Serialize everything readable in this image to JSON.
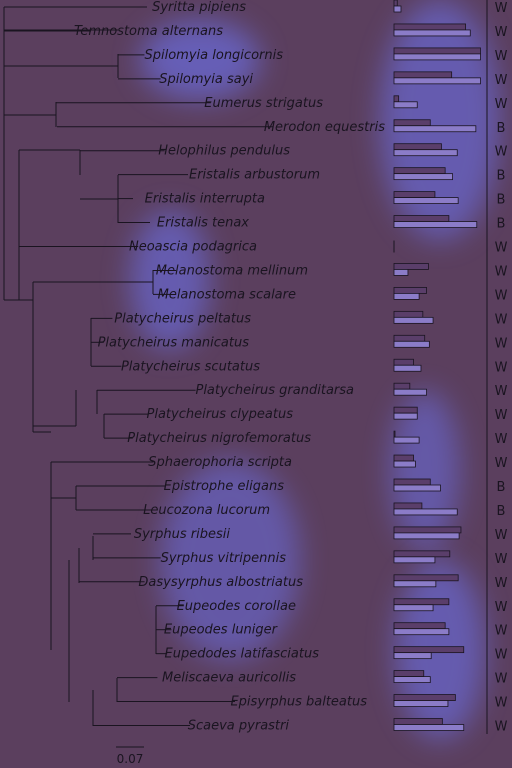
{
  "tree": {
    "taxa": [
      {
        "name": "Syritta pipiens",
        "code": "W",
        "bar1": 0.035,
        "bar2": 0.075
      },
      {
        "name": "Temnostoma alternans",
        "code": "W",
        "bar1": 0.77,
        "bar2": 0.82
      },
      {
        "name": "Spilomyia longicornis",
        "code": "W",
        "bar1": 0.93,
        "bar2": 0.93
      },
      {
        "name": "Spilomyia sayi",
        "code": "W",
        "bar1": 0.62,
        "bar2": 0.93
      },
      {
        "name": "Eumerus strigatus",
        "code": "W",
        "bar1": 0.05,
        "bar2": 0.25
      },
      {
        "name": "Merodon equestris",
        "code": "B",
        "bar1": 0.39,
        "bar2": 0.88
      },
      {
        "name": "Helophilus pendulus",
        "code": "W",
        "bar1": 0.51,
        "bar2": 0.68
      },
      {
        "name": "Eristalis arbustorum",
        "code": "B",
        "bar1": 0.55,
        "bar2": 0.63
      },
      {
        "name": "Eristalis interrupta",
        "code": "B",
        "bar1": 0.44,
        "bar2": 0.69
      },
      {
        "name": "Eristalis tenax",
        "code": "B",
        "bar1": 0.59,
        "bar2": 0.89
      },
      {
        "name": "Neoascia podagrica",
        "code": "W",
        "bar1": 0.0,
        "bar2": 0.0
      },
      {
        "name": "Melanostoma mellinum",
        "code": "W",
        "bar1": 0.37,
        "bar2": 0.15
      },
      {
        "name": "Melanostoma scalare",
        "code": "W",
        "bar1": 0.35,
        "bar2": 0.27
      },
      {
        "name": "Platycheirus peltatus",
        "code": "W",
        "bar1": 0.31,
        "bar2": 0.42
      },
      {
        "name": "Platycheirus manicatus",
        "code": "W",
        "bar1": 0.33,
        "bar2": 0.38
      },
      {
        "name": "Platycheirus scutatus",
        "code": "W",
        "bar1": 0.21,
        "bar2": 0.29
      },
      {
        "name": "Platycheirus granditarsa",
        "code": "W",
        "bar1": 0.17,
        "bar2": 0.35
      },
      {
        "name": "Platycheirus clypeatus",
        "code": "W",
        "bar1": 0.25,
        "bar2": 0.25
      },
      {
        "name": "Platycheirus nigrofemoratus",
        "code": "W",
        "bar1": 0.0,
        "bar2": 0.27
      },
      {
        "name": "Sphaerophoria scripta",
        "code": "W",
        "bar1": 0.21,
        "bar2": 0.23
      },
      {
        "name": "Epistrophe eligans",
        "code": "B",
        "bar1": 0.39,
        "bar2": 0.5
      },
      {
        "name": "Leucozona lucorum",
        "code": "B",
        "bar1": 0.3,
        "bar2": 0.68
      },
      {
        "name": "Syrphus ribesii",
        "code": "W",
        "bar1": 0.72,
        "bar2": 0.7
      },
      {
        "name": "Syrphus vitripennis",
        "code": "W",
        "bar1": 0.6,
        "bar2": 0.44
      },
      {
        "name": "Dasysyrphus albostriatus",
        "code": "W",
        "bar1": 0.69,
        "bar2": 0.45
      },
      {
        "name": "Eupeodes corollae",
        "code": "W",
        "bar1": 0.59,
        "bar2": 0.42
      },
      {
        "name": "Eupeodes luniger",
        "code": "W",
        "bar1": 0.55,
        "bar2": 0.59
      },
      {
        "name": "Eupedodes latifasciatus",
        "code": "W",
        "bar1": 0.75,
        "bar2": 0.4
      },
      {
        "name": "Meliscaeva auricollis",
        "code": "W",
        "bar1": 0.32,
        "bar2": 0.39
      },
      {
        "name": "Episyrphus balteatus",
        "code": "W",
        "bar1": 0.66,
        "bar2": 0.58
      },
      {
        "name": "Scaeva pyrastri",
        "code": "W",
        "bar1": 0.52,
        "bar2": 0.75
      }
    ],
    "scale_bar_label": "0.07"
  },
  "colors": {
    "background": "#5b3f5e",
    "line": "#1a1420",
    "glow": "#6f78ff",
    "bar_dark": "#5a3e6a",
    "bar_light": "#8b7cc8"
  }
}
